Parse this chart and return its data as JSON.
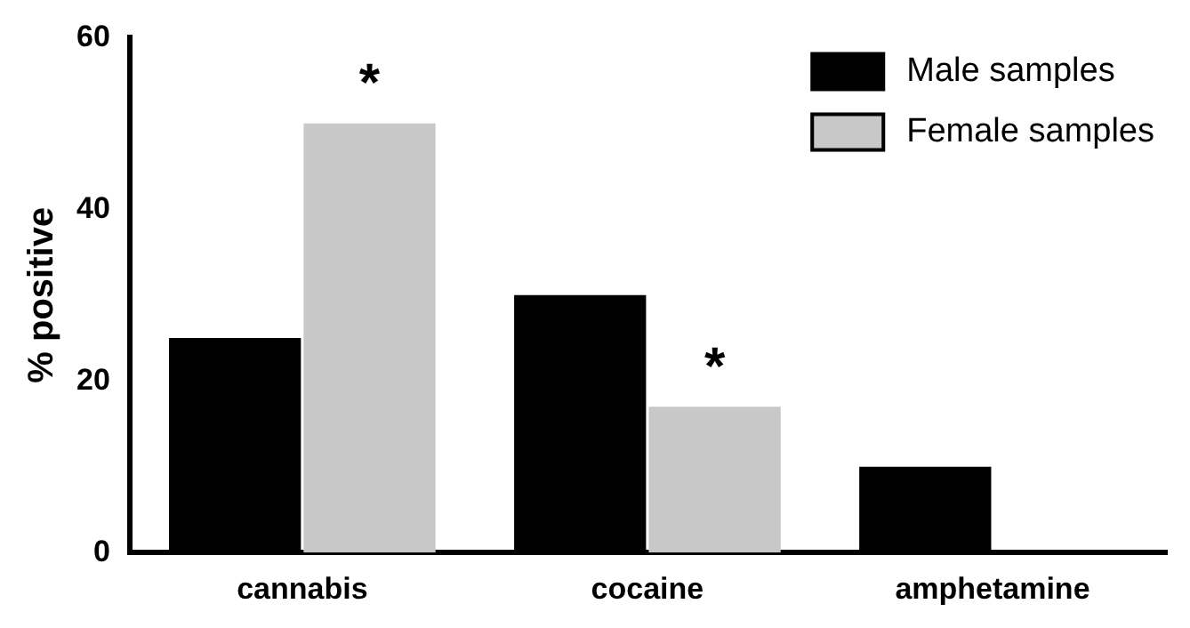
{
  "chart_data": {
    "type": "bar",
    "ylabel": "% positive",
    "categories": [
      "cannabis",
      "cocaine",
      "amphetamine"
    ],
    "series": [
      {
        "name": "Male samples",
        "color": "#000000",
        "values": [
          25,
          30,
          10
        ]
      },
      {
        "name": "Female samples",
        "color": "#c8c8c8",
        "values": [
          50,
          17,
          0
        ]
      }
    ],
    "ylim": [
      0,
      60
    ],
    "yticks": [
      0,
      20,
      40,
      60
    ],
    "grid": false,
    "legend": "top right",
    "annotations": [
      {
        "text": "*",
        "x": "cannabis",
        "y": 50
      },
      {
        "text": "*",
        "x": "cocaine",
        "y": 17
      }
    ]
  }
}
